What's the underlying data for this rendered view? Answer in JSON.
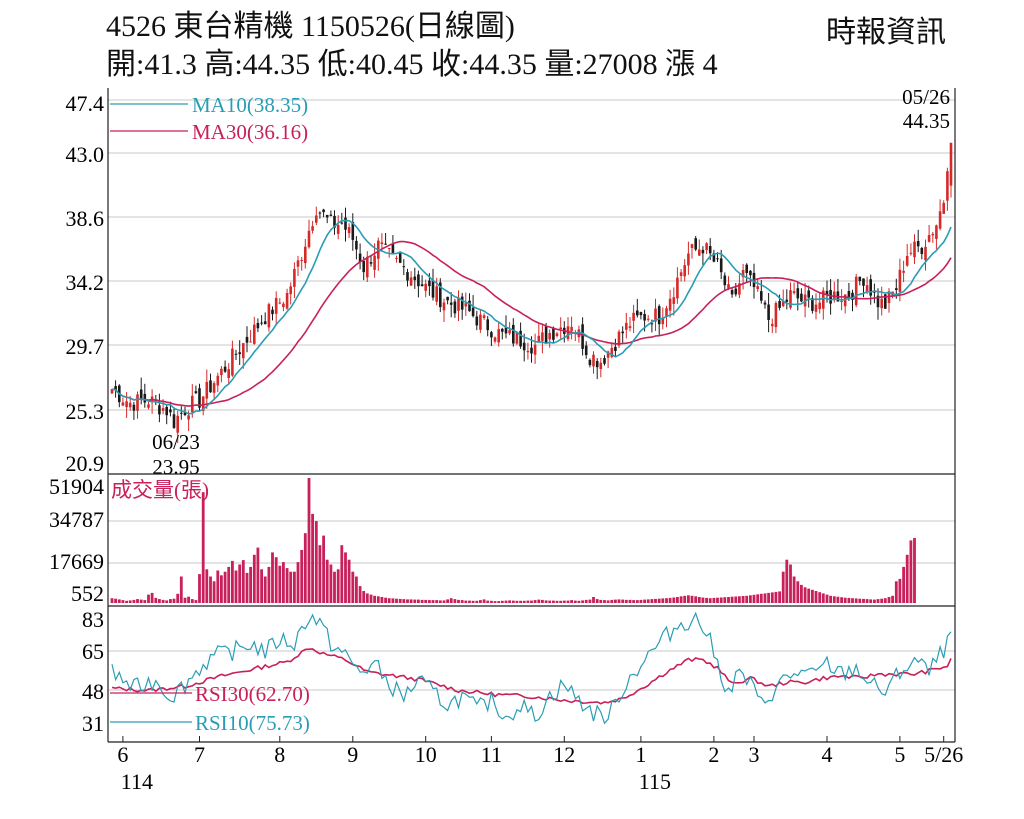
{
  "header": {
    "title": "4526 東台精機 1150526(日線圖)",
    "source": "時報資訊",
    "stats": "開:41.3 高:44.35 低:40.45 收:44.35 量:27008 漲 4"
  },
  "colors": {
    "up": "#d62a2a",
    "down": "#1a1a1a",
    "ma10": "#2a9db5",
    "ma30": "#c8205a",
    "volume": "#c8205a",
    "rsi30": "#c8205a",
    "rsi10": "#2a9db5",
    "grid": "#c8c8c8"
  },
  "chart_data": [
    {
      "type": "candlestick",
      "series": [
        {
          "name": "MA10(38.35)"
        },
        {
          "name": "MA30(36.16)"
        }
      ],
      "y_ticks": [
        "47.4",
        "43.0",
        "38.6",
        "34.2",
        "29.7",
        "25.3",
        "20.9"
      ],
      "ylim": [
        20.9,
        47.4
      ],
      "x_months": [
        {
          "label": "6",
          "i": 3
        },
        {
          "label": "7",
          "i": 24
        },
        {
          "label": "8",
          "i": 46
        },
        {
          "label": "9",
          "i": 66
        },
        {
          "label": "10",
          "i": 86
        },
        {
          "label": "11",
          "i": 104
        },
        {
          "label": "12",
          "i": 124
        },
        {
          "label": "1",
          "i": 145
        },
        {
          "label": "2",
          "i": 165
        },
        {
          "label": "3",
          "i": 176
        },
        {
          "label": "4",
          "i": 196
        },
        {
          "label": "5",
          "i": 216
        },
        {
          "label": "5/26",
          "i": 228
        }
      ],
      "year_labels": [
        {
          "label": "114",
          "i": 3
        },
        {
          "label": "115",
          "i": 145
        }
      ],
      "annotations": [
        {
          "date": "06/23",
          "value": "23.95",
          "i": 17
        },
        {
          "date": "05/26",
          "value": "44.35",
          "i": 230
        }
      ],
      "close_anchors": [
        [
          0,
          26.8
        ],
        [
          5,
          25.8
        ],
        [
          10,
          26.0
        ],
        [
          15,
          25.3
        ],
        [
          17,
          24.5
        ],
        [
          20,
          25.4
        ],
        [
          24,
          26.0
        ],
        [
          30,
          28.0
        ],
        [
          36,
          30.0
        ],
        [
          42,
          32.0
        ],
        [
          48,
          33.5
        ],
        [
          52,
          36.5
        ],
        [
          56,
          39.8
        ],
        [
          60,
          38.5
        ],
        [
          63,
          38.6
        ],
        [
          66,
          37.5
        ],
        [
          69,
          35.5
        ],
        [
          73,
          37.0
        ],
        [
          77,
          36.0
        ],
        [
          82,
          35.0
        ],
        [
          87,
          33.8
        ],
        [
          92,
          33.0
        ],
        [
          97,
          32.4
        ],
        [
          102,
          31.5
        ],
        [
          107,
          30.6
        ],
        [
          112,
          30.3
        ],
        [
          116,
          29.9
        ],
        [
          120,
          30.8
        ],
        [
          126,
          31.6
        ],
        [
          131,
          29.2
        ],
        [
          134,
          28.8
        ],
        [
          138,
          30.2
        ],
        [
          142,
          31.5
        ],
        [
          146,
          32.0
        ],
        [
          150,
          32.0
        ],
        [
          154,
          34.0
        ],
        [
          158,
          36.4
        ],
        [
          162,
          37.0
        ],
        [
          166,
          35.5
        ],
        [
          170,
          33.0
        ],
        [
          173,
          35.0
        ],
        [
          176,
          34.0
        ],
        [
          180,
          31.8
        ],
        [
          183,
          32.5
        ],
        [
          186,
          33.5
        ],
        [
          190,
          33.0
        ],
        [
          194,
          33.0
        ],
        [
          198,
          33.5
        ],
        [
          202,
          33.5
        ],
        [
          206,
          34.8
        ],
        [
          210,
          33.0
        ],
        [
          212,
          32.8
        ],
        [
          215,
          34.0
        ],
        [
          218,
          36.5
        ],
        [
          222,
          37.0
        ],
        [
          226,
          38.6
        ],
        [
          228,
          40.3
        ],
        [
          230,
          44.35
        ]
      ],
      "ma10_last": 38.35,
      "ma30_last": 36.16
    },
    {
      "type": "bar",
      "label": "成交量(張)",
      "y_ticks": [
        "51904",
        "34787",
        "17669",
        "552"
      ],
      "ylim": [
        0,
        51904
      ],
      "values": [
        2000,
        1800,
        1500,
        1200,
        900,
        1100,
        1300,
        1600,
        1400,
        1200,
        3500,
        4200,
        2100,
        1600,
        1300,
        1100,
        1600,
        1800,
        3800,
        11000,
        2200,
        2600,
        1600,
        1200,
        12000,
        46000,
        14000,
        11000,
        9000,
        13500,
        11500,
        13000,
        15000,
        17500,
        13500,
        16000,
        17800,
        12500,
        15000,
        20000,
        23000,
        14000,
        11000,
        15000,
        21000,
        19000,
        15500,
        17000,
        14500,
        13000,
        13000,
        17000,
        22000,
        29000,
        51904,
        37000,
        34000,
        24000,
        28000,
        18000,
        16000,
        13000,
        14000,
        24000,
        21000,
        18000,
        13000,
        11000,
        7000,
        5000,
        4000,
        3500,
        3000,
        2800,
        2500,
        2200,
        2000,
        1900,
        1800,
        1700,
        1600,
        1500,
        1500,
        1400,
        1400,
        1300,
        1300,
        1200,
        1200,
        1200,
        1100,
        1100,
        1500,
        2000,
        1600,
        1300,
        1200,
        1000,
        1000,
        900,
        900,
        1200,
        1500,
        1000,
        900,
        800,
        800,
        900,
        1000,
        1100,
        1000,
        900,
        900,
        900,
        1000,
        1000,
        1200,
        1400,
        1300,
        1100,
        1000,
        1000,
        900,
        900,
        1000,
        1000,
        1200,
        1000,
        900,
        1100,
        1300,
        1400,
        2500,
        1600,
        1300,
        1200,
        1100,
        1300,
        1400,
        1500,
        1400,
        1300,
        1300,
        1200,
        1200,
        1300,
        1400,
        1500,
        1600,
        1700,
        1800,
        1900,
        2000,
        2100,
        2300,
        2500,
        2800,
        3000,
        3200,
        3000,
        2800,
        2500,
        2300,
        2100,
        2000,
        2100,
        2200,
        2300,
        2400,
        2500,
        2600,
        2700,
        2800,
        2900,
        3000,
        3200,
        3400,
        3600,
        3800,
        4000,
        4200,
        4400,
        4600,
        4800,
        13000,
        18000,
        16000,
        11000,
        9000,
        7500,
        6500,
        6000,
        5500,
        5000,
        4500,
        4000,
        3500,
        3000,
        2800,
        2600,
        2400,
        2200,
        2100,
        2000,
        1900,
        1800,
        1700,
        1600,
        1500,
        1400,
        1600,
        1800,
        2000,
        2500,
        3000,
        9000,
        10000,
        15000,
        20000,
        26000,
        27008
      ]
    },
    {
      "type": "line",
      "series": [
        {
          "name": "RSI30(62.70)"
        },
        {
          "name": "RSI10(75.73)"
        }
      ],
      "y_ticks": [
        "83",
        "65",
        "48",
        "31"
      ],
      "ylim": [
        26,
        86
      ],
      "rsi30_anchors": [
        [
          0,
          48
        ],
        [
          10,
          47
        ],
        [
          20,
          49
        ],
        [
          30,
          54
        ],
        [
          40,
          58
        ],
        [
          48,
          61
        ],
        [
          54,
          68
        ],
        [
          58,
          65
        ],
        [
          64,
          62
        ],
        [
          70,
          56
        ],
        [
          78,
          54
        ],
        [
          85,
          52
        ],
        [
          95,
          47
        ],
        [
          105,
          45
        ],
        [
          115,
          44
        ],
        [
          125,
          42
        ],
        [
          135,
          41
        ],
        [
          140,
          43
        ],
        [
          146,
          49
        ],
        [
          152,
          56
        ],
        [
          158,
          62
        ],
        [
          162,
          62
        ],
        [
          166,
          58
        ],
        [
          170,
          50
        ],
        [
          175,
          53
        ],
        [
          180,
          49
        ],
        [
          185,
          51
        ],
        [
          190,
          51
        ],
        [
          195,
          53
        ],
        [
          200,
          54
        ],
        [
          205,
          53
        ],
        [
          210,
          55
        ],
        [
          215,
          55
        ],
        [
          220,
          55
        ],
        [
          225,
          57
        ],
        [
          229,
          59
        ],
        [
          230,
          62.7
        ]
      ],
      "rsi10_anchors": [
        [
          0,
          56
        ],
        [
          6,
          48
        ],
        [
          12,
          52
        ],
        [
          16,
          44
        ],
        [
          20,
          50
        ],
        [
          24,
          58
        ],
        [
          28,
          64
        ],
        [
          33,
          66
        ],
        [
          38,
          70
        ],
        [
          42,
          66
        ],
        [
          46,
          72
        ],
        [
          50,
          70
        ],
        [
          54,
          84
        ],
        [
          57,
          80
        ],
        [
          60,
          70
        ],
        [
          64,
          64
        ],
        [
          68,
          56
        ],
        [
          72,
          60
        ],
        [
          76,
          50
        ],
        [
          80,
          44
        ],
        [
          84,
          52
        ],
        [
          88,
          46
        ],
        [
          92,
          40
        ],
        [
          96,
          44
        ],
        [
          100,
          38
        ],
        [
          104,
          42
        ],
        [
          108,
          34
        ],
        [
          112,
          40
        ],
        [
          116,
          34
        ],
        [
          120,
          44
        ],
        [
          124,
          50
        ],
        [
          128,
          42
        ],
        [
          132,
          36
        ],
        [
          136,
          34
        ],
        [
          140,
          48
        ],
        [
          144,
          58
        ],
        [
          148,
          66
        ],
        [
          152,
          74
        ],
        [
          156,
          80
        ],
        [
          160,
          82
        ],
        [
          163,
          76
        ],
        [
          166,
          60
        ],
        [
          169,
          46
        ],
        [
          172,
          56
        ],
        [
          175,
          50
        ],
        [
          178,
          40
        ],
        [
          181,
          46
        ],
        [
          184,
          52
        ],
        [
          188,
          56
        ],
        [
          192,
          54
        ],
        [
          196,
          60
        ],
        [
          200,
          55
        ],
        [
          204,
          58
        ],
        [
          208,
          50
        ],
        [
          212,
          46
        ],
        [
          216,
          56
        ],
        [
          220,
          62
        ],
        [
          224,
          56
        ],
        [
          227,
          64
        ],
        [
          229,
          70
        ],
        [
          230,
          75.73
        ]
      ]
    }
  ]
}
